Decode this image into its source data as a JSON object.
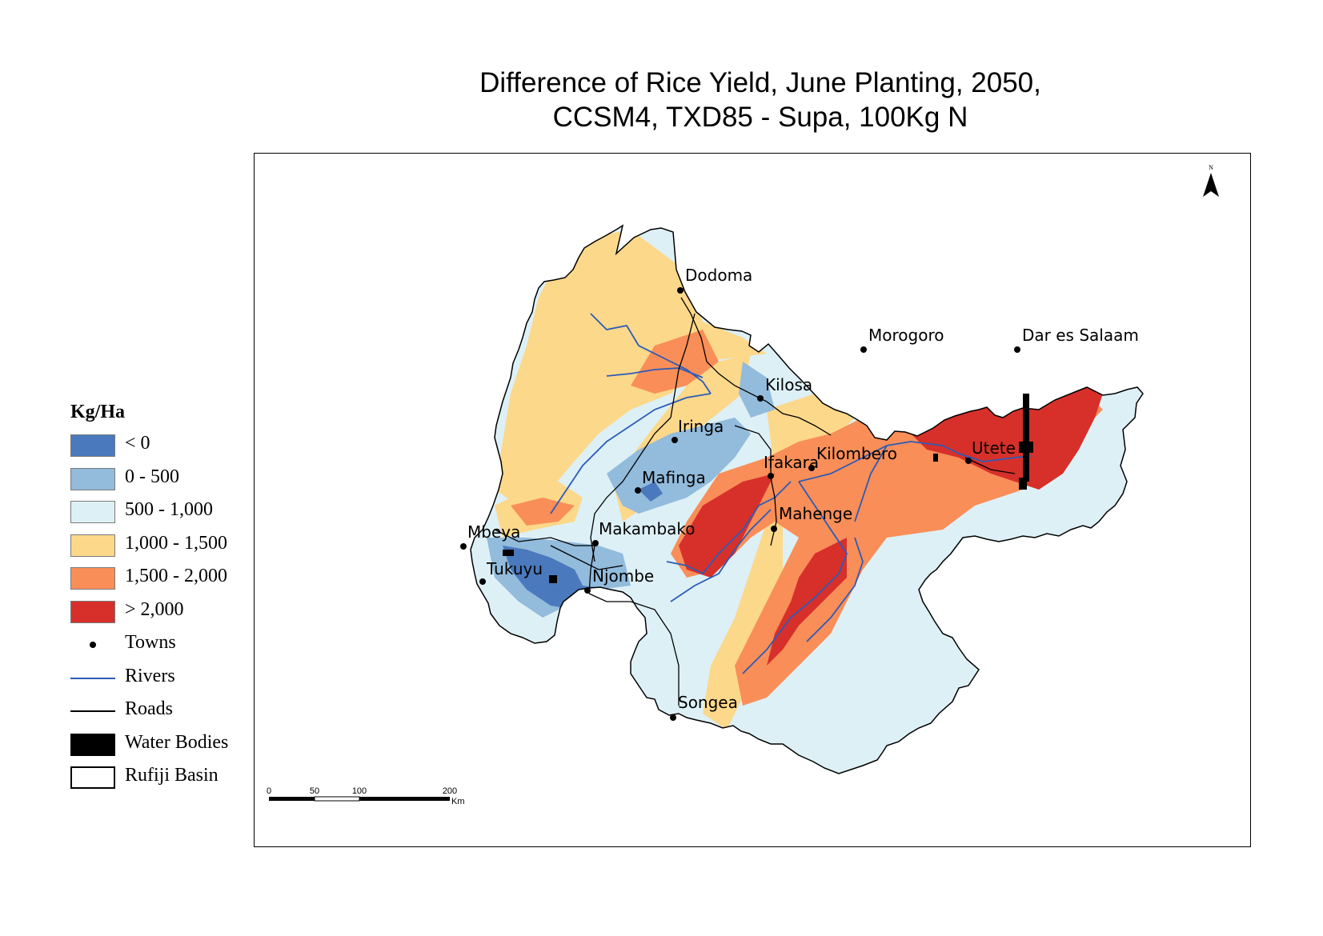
{
  "title": {
    "line1": "Difference of Rice Yield, June Planting, 2050,",
    "line2": "CCSM4, TXD85 - Supa, 100Kg N"
  },
  "legend": {
    "title": "Kg/Ha",
    "items": [
      {
        "label": "< 0",
        "type": "swatch",
        "color": "#4a79bd"
      },
      {
        "label": "0 - 500",
        "type": "swatch",
        "color": "#92bbdc"
      },
      {
        "label": "500 - 1,000",
        "type": "swatch",
        "color": "#ddf0f6"
      },
      {
        "label": "1,000 - 1,500",
        "type": "swatch",
        "color": "#fcd88a"
      },
      {
        "label": "1,500 - 2,000",
        "type": "swatch",
        "color": "#f98e58"
      },
      {
        "label": "> 2,000",
        "type": "swatch",
        "color": "#d7302a"
      },
      {
        "label": "Towns",
        "type": "point",
        "color": "#000000"
      },
      {
        "label": "Rivers",
        "type": "line",
        "color": "#2c5bb8"
      },
      {
        "label": "Roads",
        "type": "line",
        "color": "#000000"
      },
      {
        "label": "Water Bodies",
        "type": "water",
        "color": "#000000"
      },
      {
        "label": "Rufiji Basin",
        "type": "basin",
        "color": "#ffffff"
      }
    ]
  },
  "north_arrow": {
    "label": "N"
  },
  "scale_bar": {
    "ticks": [
      "0",
      "50",
      "100",
      "200"
    ],
    "unit": "Km"
  },
  "towns": [
    "Dodoma",
    "Morogoro",
    "Dar es Salaam",
    "Kilosa",
    "Iringa",
    "Ifakara",
    "Kilombero",
    "Utete",
    "Mafinga",
    "Mahenge",
    "Mbeya",
    "Makambako",
    "Tukuyu",
    "Njombe",
    "Songea"
  ],
  "colors": {
    "below_0": "#4a79bd",
    "0_500": "#92bbdc",
    "500_1000": "#ddf0f6",
    "1000_1500": "#fcd88a",
    "1500_2000": "#f98e58",
    "above_2000": "#d7302a",
    "rivers": "#2c5bb8",
    "roads": "#000000"
  }
}
